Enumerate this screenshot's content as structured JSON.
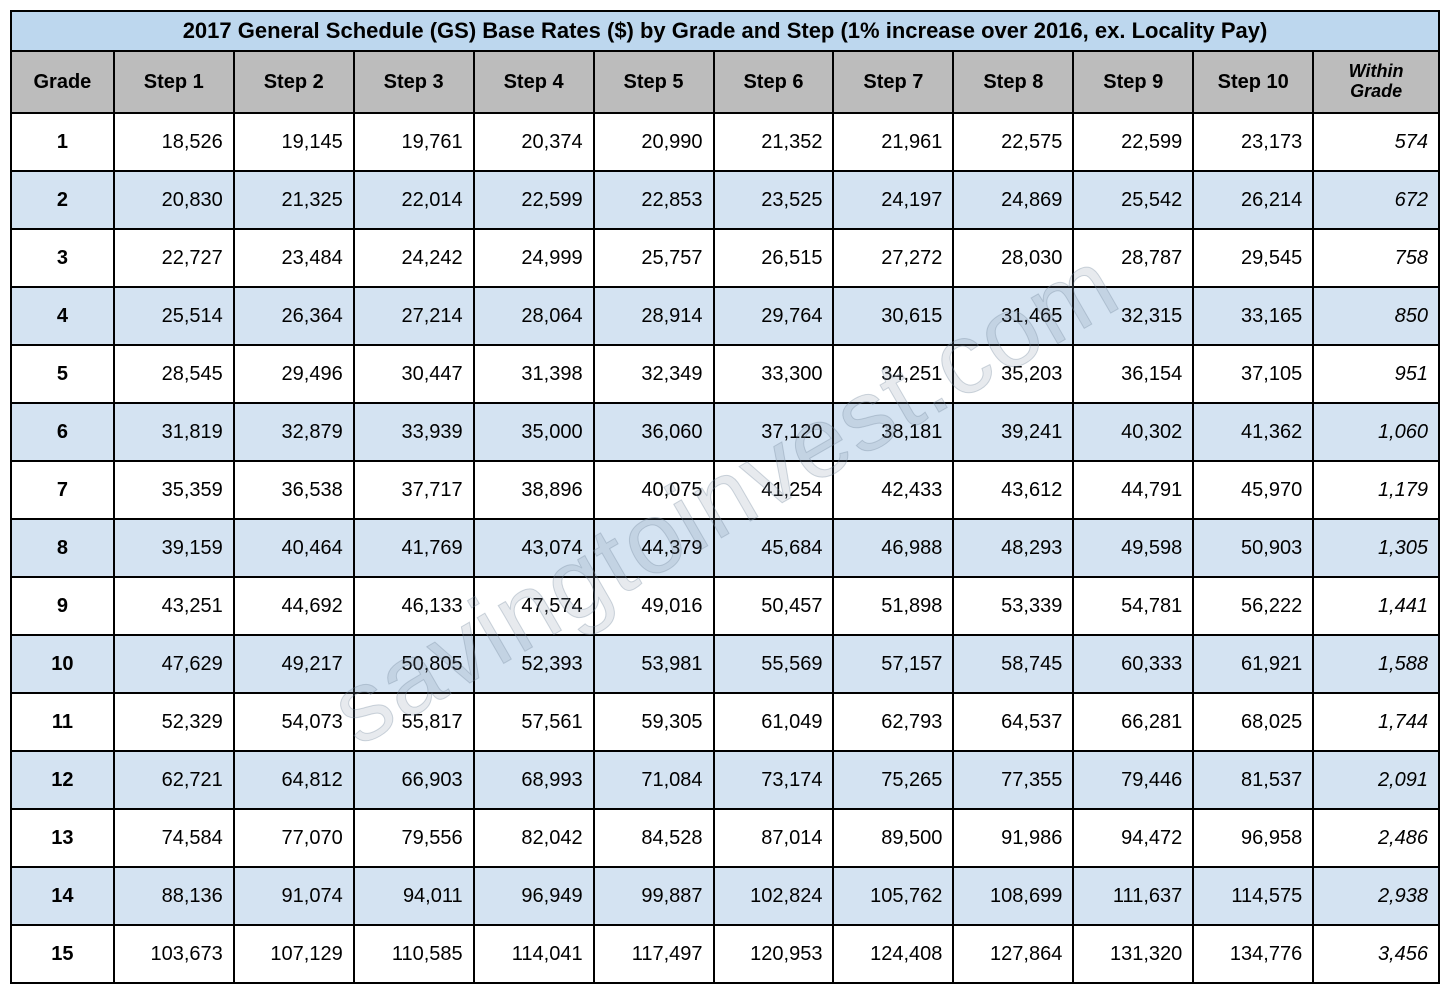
{
  "title": "2017 General Schedule (GS) Base Rates ($) by Grade and Step (1% increase over 2016, ex. Locality Pay)",
  "watermark": "savingtoinvest.com",
  "colors": {
    "title_bg": "#bdd7ee",
    "header_bg": "#bcbcbc",
    "row_even_bg": "#d4e3f2",
    "row_odd_bg": "#ffffff",
    "border": "#000000",
    "text": "#000000"
  },
  "fontsize": {
    "title": 22,
    "header": 20,
    "cell": 20,
    "within_header": 18
  },
  "columns": [
    "Grade",
    "Step 1",
    "Step 2",
    "Step 3",
    "Step 4",
    "Step 5",
    "Step 6",
    "Step 7",
    "Step 8",
    "Step 9",
    "Step 10",
    "Within Grade"
  ],
  "column_widths_pct": [
    7.2,
    8.4,
    8.4,
    8.4,
    8.4,
    8.4,
    8.4,
    8.4,
    8.4,
    8.4,
    8.4,
    8.8
  ],
  "rows": [
    {
      "grade": "1",
      "cells": [
        "18,526",
        "19,145",
        "19,761",
        "20,374",
        "20,990",
        "21,352",
        "21,961",
        "22,575",
        "22,599",
        "23,173"
      ],
      "within": "574"
    },
    {
      "grade": "2",
      "cells": [
        "20,830",
        "21,325",
        "22,014",
        "22,599",
        "22,853",
        "23,525",
        "24,197",
        "24,869",
        "25,542",
        "26,214"
      ],
      "within": "672"
    },
    {
      "grade": "3",
      "cells": [
        "22,727",
        "23,484",
        "24,242",
        "24,999",
        "25,757",
        "26,515",
        "27,272",
        "28,030",
        "28,787",
        "29,545"
      ],
      "within": "758"
    },
    {
      "grade": "4",
      "cells": [
        "25,514",
        "26,364",
        "27,214",
        "28,064",
        "28,914",
        "29,764",
        "30,615",
        "31,465",
        "32,315",
        "33,165"
      ],
      "within": "850"
    },
    {
      "grade": "5",
      "cells": [
        "28,545",
        "29,496",
        "30,447",
        "31,398",
        "32,349",
        "33,300",
        "34,251",
        "35,203",
        "36,154",
        "37,105"
      ],
      "within": "951"
    },
    {
      "grade": "6",
      "cells": [
        "31,819",
        "32,879",
        "33,939",
        "35,000",
        "36,060",
        "37,120",
        "38,181",
        "39,241",
        "40,302",
        "41,362"
      ],
      "within": "1,060"
    },
    {
      "grade": "7",
      "cells": [
        "35,359",
        "36,538",
        "37,717",
        "38,896",
        "40,075",
        "41,254",
        "42,433",
        "43,612",
        "44,791",
        "45,970"
      ],
      "within": "1,179"
    },
    {
      "grade": "8",
      "cells": [
        "39,159",
        "40,464",
        "41,769",
        "43,074",
        "44,379",
        "45,684",
        "46,988",
        "48,293",
        "49,598",
        "50,903"
      ],
      "within": "1,305"
    },
    {
      "grade": "9",
      "cells": [
        "43,251",
        "44,692",
        "46,133",
        "47,574",
        "49,016",
        "50,457",
        "51,898",
        "53,339",
        "54,781",
        "56,222"
      ],
      "within": "1,441"
    },
    {
      "grade": "10",
      "cells": [
        "47,629",
        "49,217",
        "50,805",
        "52,393",
        "53,981",
        "55,569",
        "57,157",
        "58,745",
        "60,333",
        "61,921"
      ],
      "within": "1,588"
    },
    {
      "grade": "11",
      "cells": [
        "52,329",
        "54,073",
        "55,817",
        "57,561",
        "59,305",
        "61,049",
        "62,793",
        "64,537",
        "66,281",
        "68,025"
      ],
      "within": "1,744"
    },
    {
      "grade": "12",
      "cells": [
        "62,721",
        "64,812",
        "66,903",
        "68,993",
        "71,084",
        "73,174",
        "75,265",
        "77,355",
        "79,446",
        "81,537"
      ],
      "within": "2,091"
    },
    {
      "grade": "13",
      "cells": [
        "74,584",
        "77,070",
        "79,556",
        "82,042",
        "84,528",
        "87,014",
        "89,500",
        "91,986",
        "94,472",
        "96,958"
      ],
      "within": "2,486"
    },
    {
      "grade": "14",
      "cells": [
        "88,136",
        "91,074",
        "94,011",
        "96,949",
        "99,887",
        "102,824",
        "105,762",
        "108,699",
        "111,637",
        "114,575"
      ],
      "within": "2,938"
    },
    {
      "grade": "15",
      "cells": [
        "103,673",
        "107,129",
        "110,585",
        "114,041",
        "117,497",
        "120,953",
        "124,408",
        "127,864",
        "131,320",
        "134,776"
      ],
      "within": "3,456"
    }
  ]
}
